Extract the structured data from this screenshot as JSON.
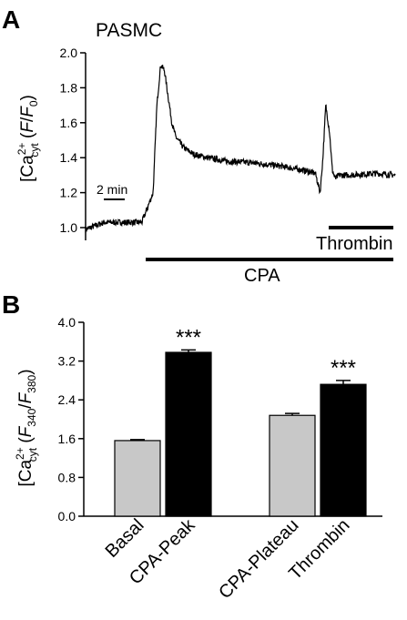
{
  "panelA": {
    "letter": "A",
    "title": "PASMC",
    "ylabel": {
      "main": "[Ca",
      "sup": "2+",
      "sub": "cyt",
      "ratio_open": " (",
      "ratio_f": "F",
      "ratio_slash": "/",
      "ratio_f0": "F",
      "ratio_f0_sub": "0",
      "ratio_close": ")"
    },
    "scale_bar_label": "2 min",
    "bars": {
      "cpa_label": "CPA",
      "thrombin_label": "Thrombin"
    }
  },
  "panelB": {
    "letter": "B",
    "ylabel": {
      "main": "[Ca",
      "sup": "2+",
      "sub": "cyt",
      "ratio_open": " (",
      "f340": "F",
      "f340_sub": "340",
      "slash": "/",
      "f380": "F",
      "f380_sub": "380",
      "ratio_close": ")"
    }
  },
  "chart_data": [
    {
      "type": "line",
      "ylim": [
        1.0,
        2.0
      ],
      "yticks": [
        "1.0",
        "1.2",
        "1.4",
        "1.6",
        "1.8",
        "2.0"
      ],
      "series": [
        {
          "x": [
            0,
            2,
            4,
            6,
            7.2,
            7.6,
            8.0,
            8.4,
            8.8,
            9.2,
            9.6,
            10.4,
            11.5,
            13,
            15,
            18,
            21,
            23,
            24.5,
            25,
            25.3,
            25.6,
            26.0,
            26.3,
            26.6,
            27.0,
            28,
            31,
            33
          ],
          "y": [
            0.99,
            1.03,
            1.03,
            1.03,
            1.2,
            1.7,
            1.93,
            1.9,
            1.75,
            1.6,
            1.52,
            1.46,
            1.42,
            1.4,
            1.38,
            1.37,
            1.35,
            1.33,
            1.31,
            1.2,
            1.4,
            1.7,
            1.55,
            1.33,
            1.28,
            1.3,
            1.3,
            1.31,
            1.3
          ]
        }
      ]
    },
    {
      "type": "bar",
      "categories": [
        "Basal",
        "CPA-Peak",
        "CPA-Plateau",
        "Thrombin"
      ],
      "values": [
        1.56,
        3.38,
        2.08,
        2.72
      ],
      "errors": [
        0.02,
        0.05,
        0.04,
        0.08
      ],
      "colors": [
        "#c8c8c8",
        "#000000",
        "#c8c8c8",
        "#000000"
      ],
      "significance": [
        "",
        "***",
        "",
        "***"
      ],
      "ylim": [
        0.0,
        4.0
      ],
      "yticks": [
        "0.0",
        "0.8",
        "1.6",
        "2.4",
        "3.2",
        "4.0"
      ]
    }
  ]
}
